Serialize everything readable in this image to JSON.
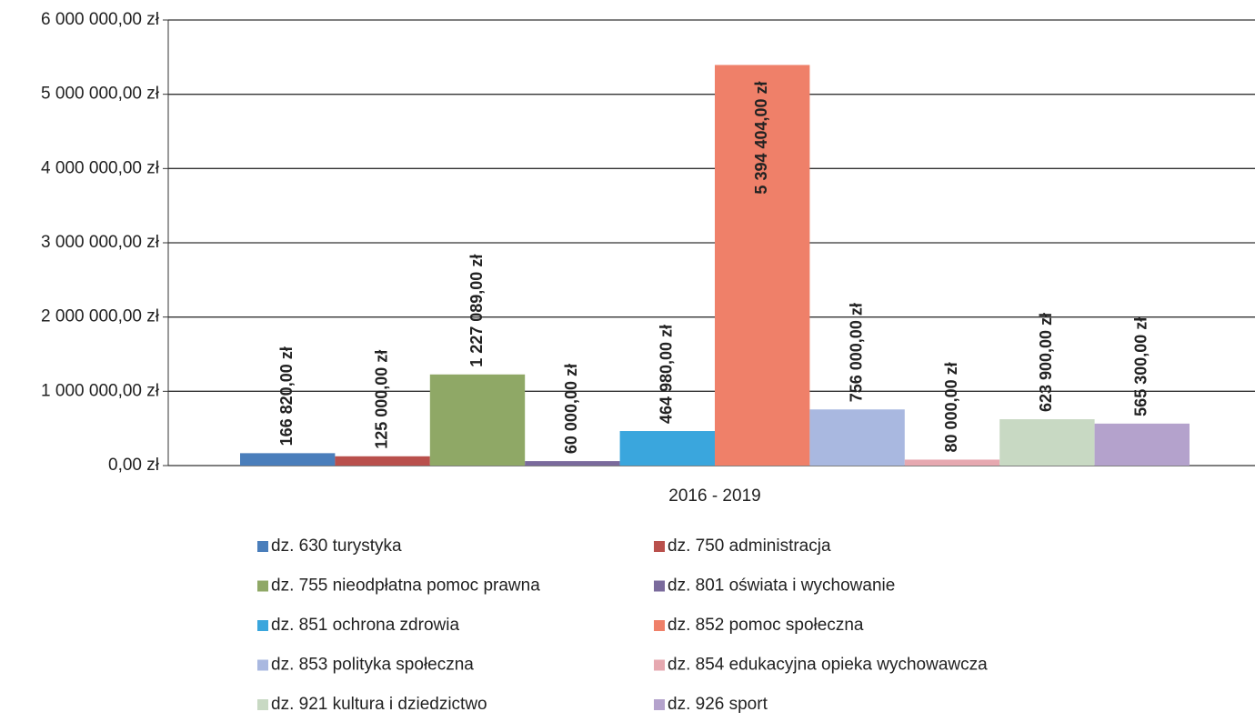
{
  "chart_data": {
    "type": "bar",
    "categories": [
      "2016 - 2019"
    ],
    "ylim": [
      0,
      6000000
    ],
    "yticks": [
      {
        "value": 0,
        "label": "0,00 zł"
      },
      {
        "value": 1000000,
        "label": "1 000 000,00 zł"
      },
      {
        "value": 2000000,
        "label": "2 000 000,00 zł"
      },
      {
        "value": 3000000,
        "label": "3 000 000,00 zł"
      },
      {
        "value": 4000000,
        "label": "4 000 000,00 zł"
      },
      {
        "value": 5000000,
        "label": "5 000 000,00 zł"
      },
      {
        "value": 6000000,
        "label": "6 000 000,00 zł"
      }
    ],
    "grid": true,
    "legend": "bottom",
    "series": [
      {
        "name": "dz. 630 turystyka",
        "color": "#4a7ebb",
        "values": [
          166820
        ],
        "value_labels": [
          "166 820,00 zł"
        ]
      },
      {
        "name": "dz. 750 administracja",
        "color": "#b9504c",
        "values": [
          125000
        ],
        "value_labels": [
          "125 000,00 zł"
        ]
      },
      {
        "name": "dz. 755 nieodpłatna pomoc prawna",
        "color": "#8fa866",
        "values": [
          1227089
        ],
        "value_labels": [
          "1 227 089,00 zł"
        ]
      },
      {
        "name": "dz. 801 oświata i wychowanie",
        "color": "#7a6a9c",
        "values": [
          60000
        ],
        "value_labels": [
          "60 000,00 zł"
        ]
      },
      {
        "name": "dz. 851 ochrona zdrowia",
        "color": "#3aa6dd",
        "values": [
          464980
        ],
        "value_labels": [
          "464 980,00 zł"
        ]
      },
      {
        "name": "dz. 852 pomoc społeczna",
        "color": "#ef8069",
        "values": [
          5394404
        ],
        "value_labels": [
          "5 394 404,00 zł"
        ]
      },
      {
        "name": "dz. 853 polityka społeczna",
        "color": "#a9b8e0",
        "values": [
          756000
        ],
        "value_labels": [
          "756 000,00 zł"
        ]
      },
      {
        "name": "dz. 854 edukacyjna opieka wychowawcza",
        "color": "#e6a8b0",
        "values": [
          80000
        ],
        "value_labels": [
          "80 000,00 zł"
        ]
      },
      {
        "name": "dz. 921 kultura i dziedzictwo",
        "color": "#c8d9c3",
        "values": [
          623900
        ],
        "value_labels": [
          "623 900,00 zł"
        ]
      },
      {
        "name": "dz. 926 sport",
        "color": "#b4a2cc",
        "values": [
          565300
        ],
        "value_labels": [
          "565 300,00 zł"
        ]
      }
    ]
  }
}
